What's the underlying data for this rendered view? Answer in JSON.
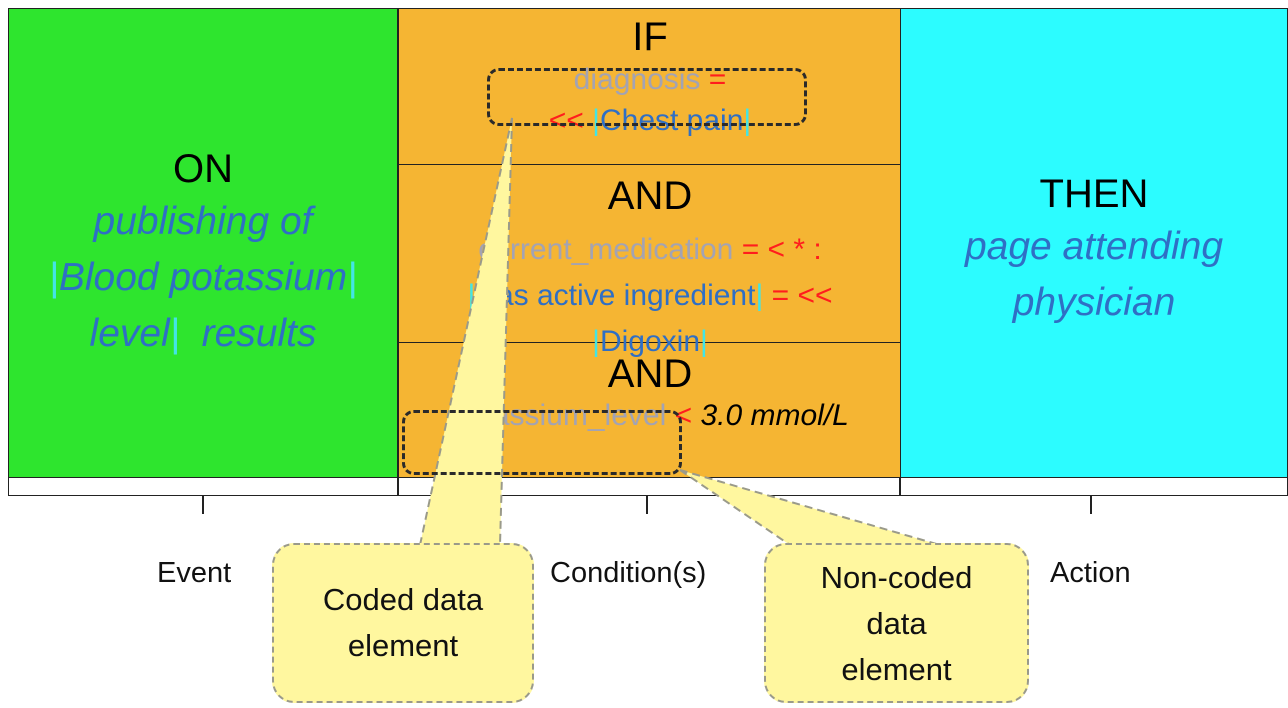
{
  "event": {
    "keyword": "ON",
    "line1": "publishing of",
    "line2": "Blood potassium",
    "line3_a": "level",
    "line3_b": "results"
  },
  "condition": {
    "if_keyword": "IF",
    "c1_attr": "diagnosis",
    "c1_op": "=",
    "c1_op2": "<<",
    "c1_value": "Chest pain",
    "and1_keyword": "AND",
    "c2_attr": "current_medication",
    "c2_op": "= < * :",
    "c2_ref": "Has active ingredient",
    "c2_op2": "= <<",
    "c2_value": "Digoxin",
    "and2_keyword": "AND",
    "c3_attr": "potassium_level",
    "c3_op": "<",
    "c3_value": "3.0 mmol/L"
  },
  "action": {
    "keyword": "THEN",
    "line1": "page attending",
    "line2": "physician"
  },
  "labels": {
    "event": "Event",
    "condition": "Condition(s)",
    "action": "Action"
  },
  "callouts": {
    "coded_line1": "Coded data",
    "coded_line2": "element",
    "noncoded_line1": "Non-coded",
    "noncoded_line2": "data",
    "noncoded_line3": "element"
  },
  "colors": {
    "event": "#2ee52e",
    "condition": "#f5b533",
    "action": "#2cfcff",
    "callout": "#fff79f"
  }
}
